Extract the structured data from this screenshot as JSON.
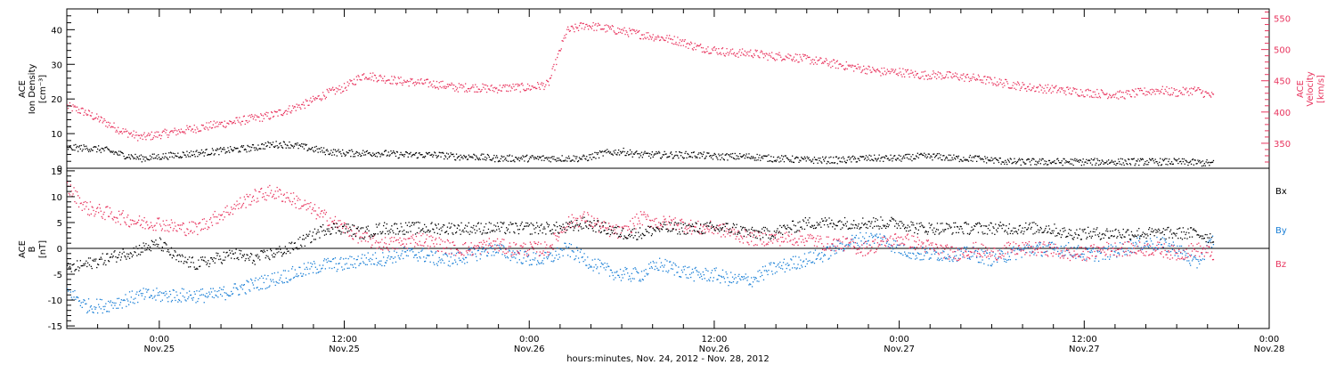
{
  "chart_data": [
    {
      "type": "scatter",
      "panel": "top",
      "ylabel_left": [
        "ACE",
        "Ion Density",
        "[cm⁻³]"
      ],
      "ylabel_right": [
        "ACE",
        "Velocity",
        "[km/s]"
      ],
      "ylim_left": [
        0,
        46
      ],
      "ylim_right": [
        310,
        565
      ],
      "yticks_left": [
        0,
        10,
        20,
        30,
        40
      ],
      "yticks_right": [
        350,
        400,
        450,
        500,
        550
      ],
      "colors": {
        "density": "#000000",
        "velocity": "#e8345e"
      },
      "series": [
        {
          "axis": "left",
          "x": [
            -0.25,
            -0.2,
            -0.15,
            -0.1,
            -0.05,
            0,
            0.05,
            0.1,
            0.15,
            0.2,
            0.25,
            0.3,
            0.35,
            0.4,
            0.45,
            0.5,
            0.55,
            0.6,
            0.65,
            0.7,
            0.75,
            0.8,
            0.85,
            0.9,
            0.95,
            1,
            1.05,
            1.1,
            1.15,
            1.2,
            1.25,
            1.3,
            1.35,
            1.4,
            1.45,
            1.5,
            1.55,
            1.6,
            1.65,
            1.7,
            1.75,
            1.8,
            1.85,
            1.9,
            1.95,
            2,
            2.05,
            2.1,
            2.15,
            2.2,
            2.25,
            2.3,
            2.35,
            2.4,
            2.45,
            2.5,
            2.55,
            2.6,
            2.65,
            2.7,
            2.75,
            2.8,
            2.85
          ],
          "y": [
            6,
            6,
            5.5,
            4,
            3,
            3.5,
            4,
            4.5,
            5,
            5.5,
            6,
            7,
            7,
            6,
            5,
            4.5,
            4.5,
            4.5,
            4,
            4,
            4,
            3.5,
            3.5,
            3,
            3,
            3,
            3,
            3,
            3,
            4.5,
            5,
            4,
            4,
            4,
            4,
            3.5,
            3.5,
            3.5,
            3,
            2.8,
            2.5,
            2.5,
            2.5,
            3,
            3,
            3,
            3.5,
            3.5,
            3,
            3,
            2.5,
            2,
            2,
            2,
            2,
            2,
            2,
            2,
            2,
            2,
            2,
            1.8,
            1.5
          ]
        },
        {
          "axis": "right",
          "x": [
            -0.25,
            -0.2,
            -0.15,
            -0.1,
            -0.05,
            0,
            0.05,
            0.1,
            0.15,
            0.2,
            0.25,
            0.3,
            0.35,
            0.4,
            0.45,
            0.5,
            0.55,
            0.6,
            0.65,
            0.7,
            0.75,
            0.8,
            0.85,
            0.9,
            0.95,
            1,
            1.05,
            1.1,
            1.15,
            1.2,
            1.25,
            1.3,
            1.35,
            1.4,
            1.45,
            1.5,
            1.55,
            1.6,
            1.65,
            1.7,
            1.75,
            1.8,
            1.85,
            1.9,
            1.95,
            2,
            2.05,
            2.1,
            2.15,
            2.2,
            2.25,
            2.3,
            2.35,
            2.4,
            2.45,
            2.5,
            2.55,
            2.6,
            2.65,
            2.7,
            2.75,
            2.8,
            2.85
          ],
          "y": [
            410,
            400,
            385,
            370,
            360,
            365,
            370,
            375,
            380,
            385,
            390,
            395,
            405,
            415,
            430,
            440,
            460,
            455,
            450,
            448,
            445,
            440,
            440,
            438,
            440,
            440,
            445,
            530,
            540,
            535,
            530,
            525,
            520,
            515,
            505,
            500,
            495,
            495,
            490,
            490,
            485,
            480,
            475,
            470,
            465,
            465,
            460,
            460,
            458,
            455,
            450,
            445,
            440,
            438,
            435,
            432,
            430,
            428,
            432,
            436,
            432,
            436,
            425
          ]
        }
      ]
    },
    {
      "type": "scatter",
      "panel": "bottom",
      "ylabel_left": [
        "ACE",
        "B",
        "[nT]"
      ],
      "ylim": [
        -15.5,
        15.5
      ],
      "yticks": [
        -15,
        -10,
        -5,
        0,
        5,
        10,
        15
      ],
      "colors": {
        "Bx": "#000000",
        "By": "#1a7fd6",
        "Bz": "#e8345e"
      },
      "legend": [
        "Bx",
        "By",
        "Bz"
      ],
      "series": [
        {
          "name": "Bx",
          "x": [
            -0.25,
            -0.2,
            -0.15,
            -0.1,
            -0.05,
            0,
            0.05,
            0.1,
            0.15,
            0.2,
            0.25,
            0.3,
            0.35,
            0.4,
            0.45,
            0.5,
            0.55,
            0.6,
            0.65,
            0.7,
            0.75,
            0.8,
            0.85,
            0.9,
            0.95,
            1,
            1.05,
            1.1,
            1.15,
            1.2,
            1.25,
            1.3,
            1.35,
            1.4,
            1.45,
            1.5,
            1.55,
            1.6,
            1.65,
            1.7,
            1.75,
            1.8,
            1.85,
            1.9,
            1.95,
            2,
            2.05,
            2.1,
            2.15,
            2.2,
            2.25,
            2.3,
            2.35,
            2.4,
            2.45,
            2.5,
            2.55,
            2.6,
            2.65,
            2.7,
            2.75,
            2.8,
            2.85
          ],
          "y": [
            -4,
            -3,
            -2,
            -1,
            0,
            1,
            -2,
            -3,
            -2,
            -1,
            -2,
            -1,
            0,
            2,
            4,
            4,
            3,
            4,
            4,
            4,
            4,
            4,
            4,
            4,
            4,
            4,
            4,
            4,
            5,
            4,
            3,
            3,
            4,
            4,
            4,
            4,
            4,
            3,
            3,
            4,
            5,
            5,
            5,
            5,
            5,
            5,
            4,
            4,
            4,
            4,
            4,
            4,
            4,
            4,
            3,
            3,
            3,
            3,
            3,
            3,
            3,
            3,
            2
          ]
        },
        {
          "name": "By",
          "x": [
            -0.25,
            -0.2,
            -0.15,
            -0.1,
            -0.05,
            0,
            0.05,
            0.1,
            0.15,
            0.2,
            0.25,
            0.3,
            0.35,
            0.4,
            0.45,
            0.5,
            0.55,
            0.6,
            0.65,
            0.7,
            0.75,
            0.8,
            0.85,
            0.9,
            0.95,
            1,
            1.05,
            1.1,
            1.15,
            1.2,
            1.25,
            1.3,
            1.35,
            1.4,
            1.45,
            1.5,
            1.55,
            1.6,
            1.65,
            1.7,
            1.75,
            1.8,
            1.85,
            1.9,
            1.95,
            2,
            2.05,
            2.1,
            2.15,
            2.2,
            2.25,
            2.3,
            2.35,
            2.4,
            2.45,
            2.5,
            2.55,
            2.6,
            2.65,
            2.7,
            2.75,
            2.8,
            2.85
          ],
          "y": [
            -8,
            -11,
            -11,
            -10,
            -9,
            -9,
            -9,
            -9,
            -9,
            -8,
            -7,
            -6,
            -5,
            -4,
            -3,
            -3,
            -2,
            -2,
            -1,
            -1,
            -2,
            -2,
            -1,
            0,
            -1,
            -2,
            -2,
            0,
            -2,
            -4,
            -5,
            -5,
            -3,
            -4,
            -5,
            -5,
            -6,
            -6,
            -4,
            -3,
            -2,
            -1,
            1,
            2,
            2,
            0,
            -1,
            -1,
            -1,
            -1,
            -2,
            -1,
            0,
            0,
            0,
            -1,
            -1,
            0,
            1,
            1,
            0,
            -3,
            2
          ]
        },
        {
          "name": "Bz",
          "x": [
            -0.25,
            -0.2,
            -0.15,
            -0.1,
            -0.05,
            0,
            0.05,
            0.1,
            0.15,
            0.2,
            0.25,
            0.3,
            0.35,
            0.4,
            0.45,
            0.5,
            0.55,
            0.6,
            0.65,
            0.7,
            0.75,
            0.8,
            0.85,
            0.9,
            0.95,
            1,
            1.05,
            1.1,
            1.15,
            1.2,
            1.25,
            1.3,
            1.35,
            1.4,
            1.45,
            1.5,
            1.55,
            1.6,
            1.65,
            1.7,
            1.75,
            1.8,
            1.85,
            1.9,
            1.95,
            2,
            2.05,
            2.1,
            2.15,
            2.2,
            2.25,
            2.3,
            2.35,
            2.4,
            2.45,
            2.5,
            2.55,
            2.6,
            2.65,
            2.7,
            2.75,
            2.8,
            2.85
          ],
          "y": [
            12,
            8,
            7,
            6,
            5,
            5,
            4,
            4,
            6,
            8,
            10,
            11,
            10,
            8,
            6,
            4,
            2,
            1,
            1,
            2,
            1,
            0,
            0,
            1,
            0,
            0,
            0,
            5,
            6,
            4,
            3,
            6,
            5,
            5,
            4,
            4,
            3,
            2,
            2,
            2,
            2,
            1,
            1,
            0,
            1,
            2,
            1,
            0,
            -1,
            0,
            -1,
            0,
            0,
            0,
            -1,
            -1,
            0,
            0,
            0,
            0,
            -1,
            0,
            -1
          ]
        }
      ]
    }
  ],
  "x_axis": {
    "ticks": [
      {
        "x": 0,
        "time": "0:00",
        "date": "Nov.25"
      },
      {
        "x": 0.5,
        "time": "12:00",
        "date": "Nov.25"
      },
      {
        "x": 1,
        "time": "0:00",
        "date": "Nov.26"
      },
      {
        "x": 1.5,
        "time": "12:00",
        "date": "Nov.26"
      },
      {
        "x": 2,
        "time": "0:00",
        "date": "Nov.27"
      },
      {
        "x": 2.5,
        "time": "12:00",
        "date": "Nov.27"
      },
      {
        "x": 3,
        "time": "0:00",
        "date": "Nov.28"
      }
    ],
    "title": "hours:minutes, Nov. 24, 2012 - Nov. 28, 2012"
  }
}
